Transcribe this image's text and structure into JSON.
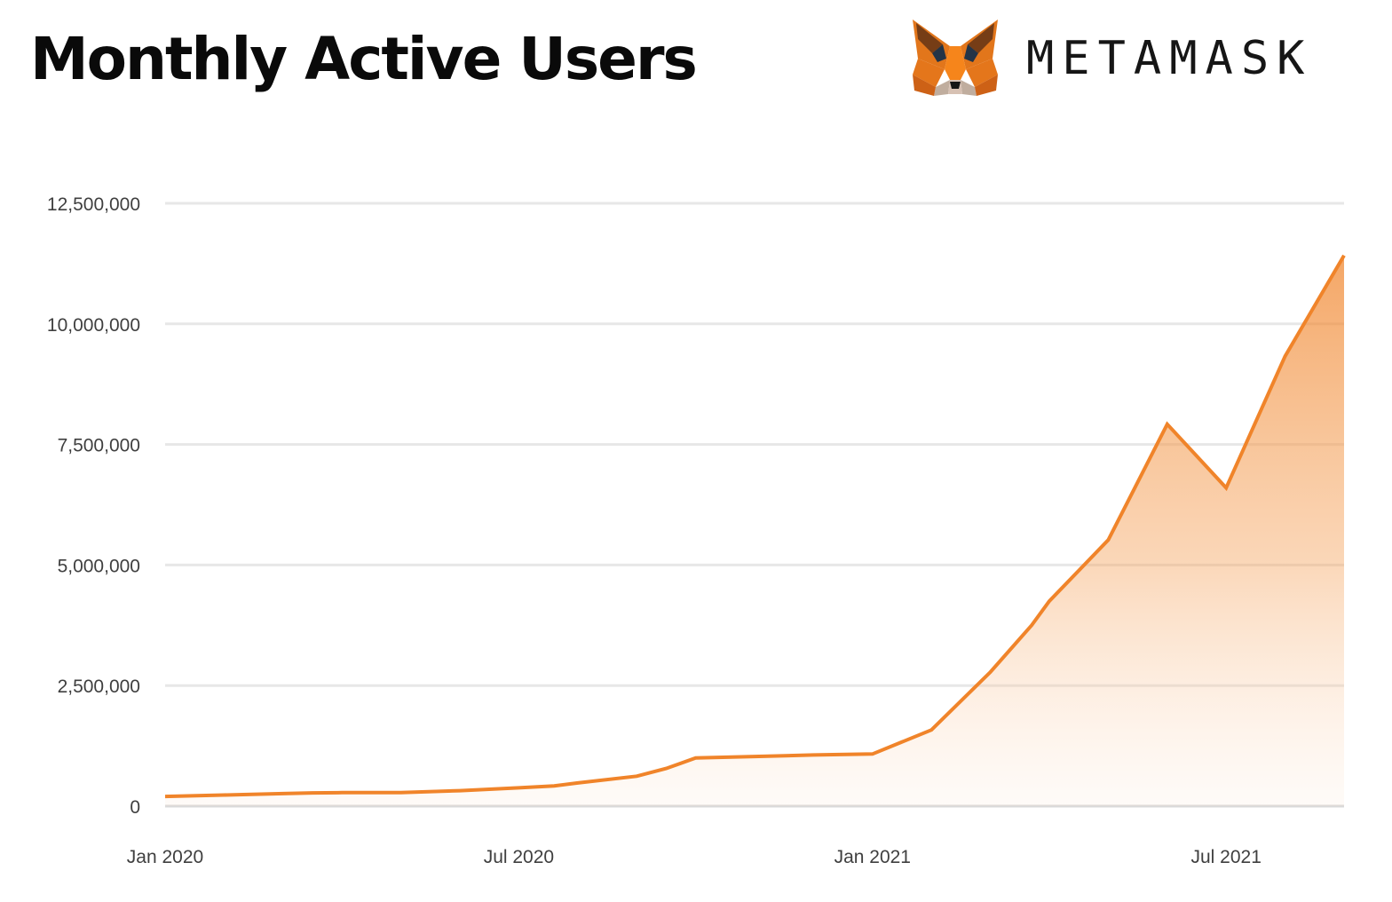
{
  "header": {
    "title": "Monthly Active Users",
    "brand_name": "METAMASK",
    "logo_icon": "metamask-fox-icon"
  },
  "colors": {
    "line": "#F0842A",
    "fill_top": "#F0842A",
    "grid": "#E7E7E7",
    "axis_text": "#3F3F3F"
  },
  "chart_data": {
    "type": "area",
    "title": "Monthly Active Users",
    "xlabel": "",
    "ylabel": "",
    "ylim": [
      0,
      12500000
    ],
    "yticks": [
      0,
      2500000,
      5000000,
      7500000,
      10000000,
      12500000
    ],
    "ytick_labels": [
      "0",
      "2,500,000",
      "5,000,000",
      "7,500,000",
      "10,000,000",
      "12,500,000"
    ],
    "xlim": [
      0,
      20
    ],
    "xticks": [
      0,
      6,
      12,
      18
    ],
    "xtick_labels": [
      "Jan 2020",
      "Jul 2020",
      "Jan 2021",
      "Jul 2021"
    ],
    "grid": true,
    "series": [
      {
        "name": "Monthly Active Users",
        "x": [
          0,
          1,
          2,
          2.5,
          3,
          4,
          5,
          6,
          6.6,
          7,
          8,
          8.5,
          9,
          10,
          11,
          12,
          13,
          14,
          14.7,
          15,
          16,
          17,
          18,
          19,
          20
        ],
        "values": [
          200000,
          230000,
          260000,
          275000,
          280000,
          280000,
          320000,
          380000,
          420000,
          480000,
          620000,
          780000,
          1000000,
          1030000,
          1060000,
          1080000,
          1580000,
          2780000,
          3750000,
          4250000,
          5520000,
          7920000,
          6600000,
          9330000,
          11420000
        ]
      }
    ]
  }
}
